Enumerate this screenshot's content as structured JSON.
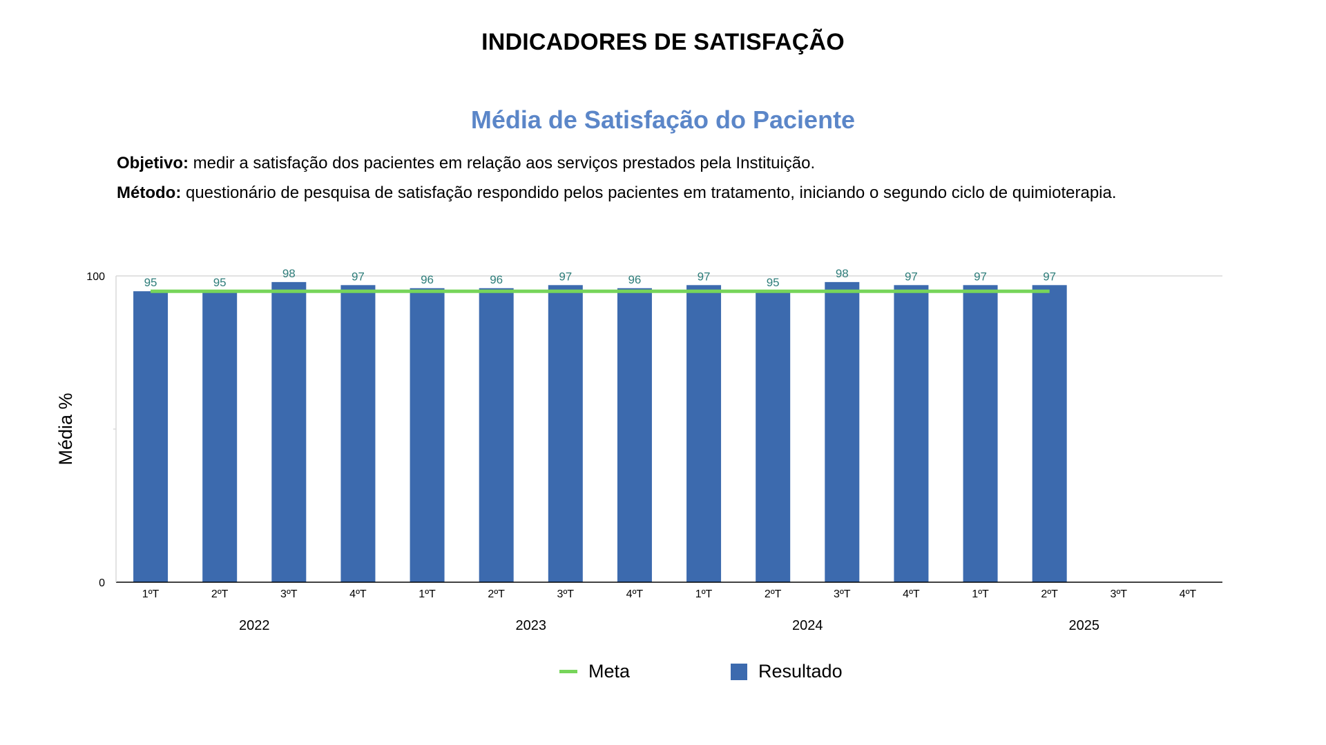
{
  "page": {
    "title": "INDICADORES DE SATISFAÇÃO",
    "objective_label": "Objetivo:",
    "objective_text": " medir a satisfação dos pacientes em relação aos serviços prestados pela Instituição.",
    "method_label": "Método:",
    "method_text": " questionário de pesquisa de satisfação respondido pelos pacientes em tratamento, iniciando o segundo ciclo de quimioterapia."
  },
  "colors": {
    "bar": "#3c6aae",
    "meta_line": "#77d55a",
    "data_label": "#2e7d7a",
    "title": "#5b86c8",
    "axis": "#000000",
    "gridline": "#d9d9d9"
  },
  "chart_data": {
    "type": "bar",
    "title": "Média de Satisfação do Paciente",
    "xlabel": "",
    "ylabel": "Média %",
    "ylim": [
      0,
      100
    ],
    "yticks": [
      0,
      100
    ],
    "grid": true,
    "legend_position": "bottom",
    "categories": [
      "1ºT",
      "2ºT",
      "3ºT",
      "4ºT",
      "1ºT",
      "2ºT",
      "3ºT",
      "4ºT",
      "1ºT",
      "2ºT",
      "3ºT",
      "4ºT",
      "1ºT",
      "2ºT",
      "3ºT",
      "4ºT"
    ],
    "groups": [
      {
        "label": "2022",
        "span": 4
      },
      {
        "label": "2023",
        "span": 4
      },
      {
        "label": "2024",
        "span": 4
      },
      {
        "label": "2025",
        "span": 4
      }
    ],
    "series": [
      {
        "name": "Resultado",
        "kind": "bar",
        "values": [
          95,
          95,
          98,
          97,
          96,
          96,
          97,
          96,
          97,
          95,
          98,
          97,
          97,
          97,
          null,
          null
        ],
        "data_labels": true
      },
      {
        "name": "Meta",
        "kind": "line",
        "values": [
          95,
          95,
          95,
          95,
          95,
          95,
          95,
          95,
          95,
          95,
          95,
          95,
          95,
          95,
          null,
          null
        ]
      }
    ]
  },
  "legend": [
    {
      "name": "Meta",
      "icon": "line-swatch"
    },
    {
      "name": "Resultado",
      "icon": "box-swatch"
    }
  ]
}
